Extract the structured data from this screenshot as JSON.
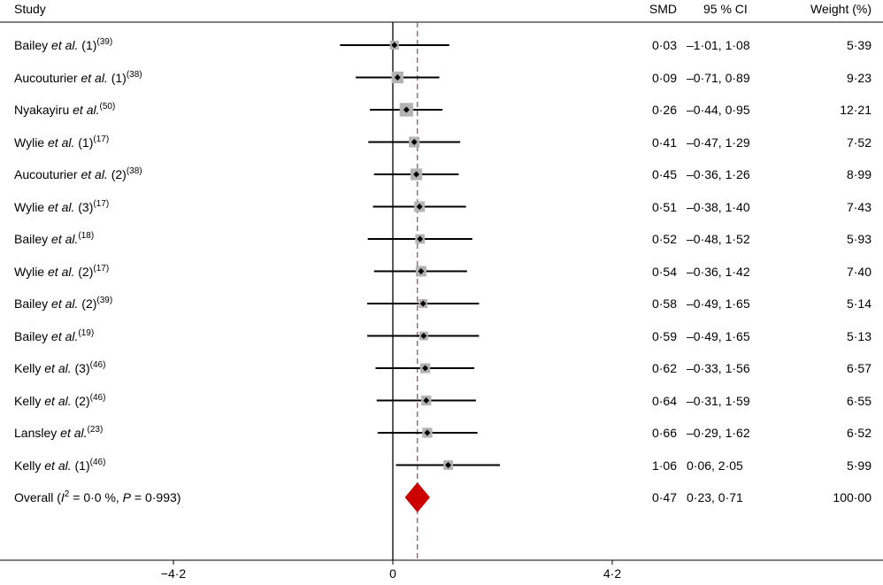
{
  "header": {
    "study": "Study",
    "smd": "SMD",
    "ci": "95 % CI",
    "weight": "Weight (%)"
  },
  "colors": {
    "axis": "#000000",
    "ci_line": "#000000",
    "box": "#b3b3b3",
    "point": "#000000",
    "overall_diamond": "#cc0000",
    "overall_line": "#a05060"
  },
  "chart_data": {
    "type": "forest",
    "xlim": [
      -7,
      13
    ],
    "x_ticks": [
      -4.2,
      0,
      4.2
    ],
    "x_tick_labels": [
      "−4·2",
      "0",
      "4·2"
    ],
    "reference_line": 0,
    "overall_line": 0.47,
    "studies": [
      {
        "author": "Bailey",
        "suffix": " (1)",
        "ref": "(39)",
        "smd": 0.03,
        "lo": -1.01,
        "hi": 1.08,
        "weight": 5.39,
        "smd_text": "0·03",
        "ci_text": "–1·01, 1·08",
        "weight_text": "5·39"
      },
      {
        "author": "Aucouturier",
        "suffix": " (1)",
        "ref": "(38)",
        "smd": 0.09,
        "lo": -0.71,
        "hi": 0.89,
        "weight": 9.23,
        "smd_text": "0·09",
        "ci_text": "–0·71, 0·89",
        "weight_text": "9·23"
      },
      {
        "author": "Nyakayiru",
        "suffix": "",
        "ref": "(50)",
        "smd": 0.26,
        "lo": -0.44,
        "hi": 0.95,
        "weight": 12.21,
        "smd_text": "0·26",
        "ci_text": "–0·44, 0·95",
        "weight_text": "12·21"
      },
      {
        "author": "Wylie",
        "suffix": " (1)",
        "ref": "(17)",
        "smd": 0.41,
        "lo": -0.47,
        "hi": 1.29,
        "weight": 7.52,
        "smd_text": "0·41",
        "ci_text": "–0·47, 1·29",
        "weight_text": "7·52"
      },
      {
        "author": "Aucouturier",
        "suffix": " (2)",
        "ref": "(38)",
        "smd": 0.45,
        "lo": -0.36,
        "hi": 1.26,
        "weight": 8.99,
        "smd_text": "0·45",
        "ci_text": "–0·36, 1·26",
        "weight_text": "8·99"
      },
      {
        "author": "Wylie",
        "suffix": " (3)",
        "ref": "(17)",
        "smd": 0.51,
        "lo": -0.38,
        "hi": 1.4,
        "weight": 7.43,
        "smd_text": "0·51",
        "ci_text": "–0·38, 1·40",
        "weight_text": "7·43"
      },
      {
        "author": "Bailey",
        "suffix": "",
        "ref": "(18)",
        "smd": 0.52,
        "lo": -0.48,
        "hi": 1.52,
        "weight": 5.93,
        "smd_text": "0·52",
        "ci_text": "–0·48, 1·52",
        "weight_text": "5·93"
      },
      {
        "author": "Wylie",
        "suffix": " (2)",
        "ref": "(17)",
        "smd": 0.54,
        "lo": -0.36,
        "hi": 1.42,
        "weight": 7.4,
        "smd_text": "0·54",
        "ci_text": "–0·36, 1·42",
        "weight_text": "7·40"
      },
      {
        "author": "Bailey",
        "suffix": " (2)",
        "ref": "(39)",
        "smd": 0.58,
        "lo": -0.49,
        "hi": 1.65,
        "weight": 5.14,
        "smd_text": "0·58",
        "ci_text": "–0·49, 1·65",
        "weight_text": "5·14"
      },
      {
        "author": "Bailey",
        "suffix": "",
        "ref": "(19)",
        "smd": 0.59,
        "lo": -0.49,
        "hi": 1.65,
        "weight": 5.13,
        "smd_text": "0·59",
        "ci_text": "–0·49, 1·65",
        "weight_text": "5·13"
      },
      {
        "author": "Kelly",
        "suffix": " (3)",
        "ref": "(46)",
        "smd": 0.62,
        "lo": -0.33,
        "hi": 1.56,
        "weight": 6.57,
        "smd_text": "0·62",
        "ci_text": "–0·33, 1·56",
        "weight_text": "6·57"
      },
      {
        "author": "Kelly",
        "suffix": " (2)",
        "ref": "(46)",
        "smd": 0.64,
        "lo": -0.31,
        "hi": 1.59,
        "weight": 6.55,
        "smd_text": "0·64",
        "ci_text": "–0·31, 1·59",
        "weight_text": "6·55"
      },
      {
        "author": "Lansley",
        "suffix": "",
        "ref": "(23)",
        "smd": 0.66,
        "lo": -0.29,
        "hi": 1.62,
        "weight": 6.52,
        "smd_text": "0·66",
        "ci_text": "–0·29, 1·62",
        "weight_text": "6·52"
      },
      {
        "author": "Kelly",
        "suffix": " (1)",
        "ref": "(46)",
        "smd": 1.06,
        "lo": 0.06,
        "hi": 2.05,
        "weight": 5.99,
        "smd_text": "1·06",
        "ci_text": "0·06, 2·05",
        "weight_text": "5·99"
      }
    ],
    "overall": {
      "label_prefix": "Overall (",
      "i2_sym": "I",
      "i2_sup": "2",
      "i2_eq": " = 0·0 %, ",
      "p_sym": "P",
      "p_eq": " = 0·993)",
      "smd": 0.47,
      "lo": 0.23,
      "hi": 0.71,
      "weight": 100.0,
      "smd_text": "0·47",
      "ci_text": "0·23, 0·71",
      "weight_text": "100·00"
    }
  }
}
